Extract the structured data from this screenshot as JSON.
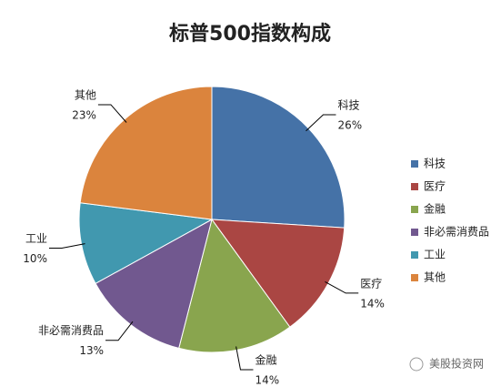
{
  "chart_data": {
    "type": "pie",
    "title": "标普500指数构成",
    "categories": [
      "科技",
      "医疗",
      "金融",
      "非必需消费品",
      "工业",
      "其他"
    ],
    "values": [
      26,
      14,
      14,
      13,
      10,
      23
    ],
    "value_labels": [
      "26%",
      "14%",
      "14%",
      "13%",
      "10%",
      "23%"
    ],
    "colors": [
      "#4572a7",
      "#aa4643",
      "#89a54e",
      "#71588f",
      "#4198af",
      "#db843d"
    ],
    "legend": "right"
  },
  "watermark": "美股投资网"
}
